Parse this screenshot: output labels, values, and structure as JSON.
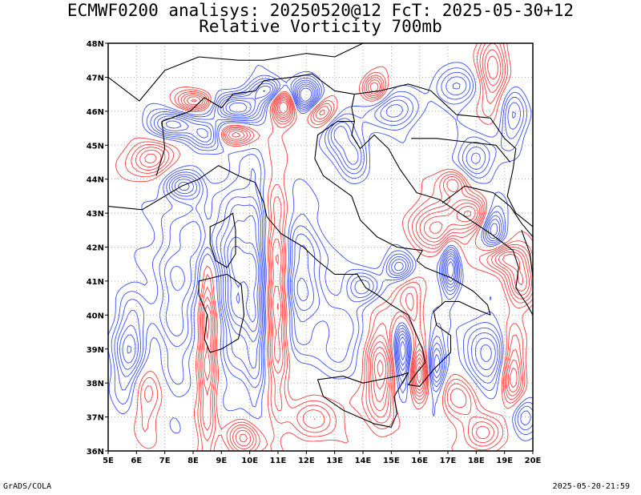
{
  "header": {
    "title_line1": "ECMWF0200 analisys: 20250520@12 FcT: 2025-05-30+12",
    "title_line2": "Relative Vorticity 700mb"
  },
  "footer": {
    "left": "GrADS/COLA",
    "right": "2025-05-20-21:59"
  },
  "map": {
    "lon_range": [
      5,
      20
    ],
    "lat_range": [
      36,
      48
    ],
    "lon_ticks": [
      "5E",
      "6E",
      "7E",
      "8E",
      "9E",
      "10E",
      "11E",
      "12E",
      "13E",
      "14E",
      "15E",
      "16E",
      "17E",
      "18E",
      "19E",
      "20E"
    ],
    "lat_ticks": [
      "36N",
      "37N",
      "38N",
      "39N",
      "40N",
      "41N",
      "42N",
      "43N",
      "44N",
      "45N",
      "46N",
      "47N",
      "48N"
    ],
    "colors": {
      "positive_contour": "#ff3c3c",
      "negative_contour": "#3c50ff",
      "coastline": "#000000",
      "grid": "#9a9a9a"
    }
  }
}
